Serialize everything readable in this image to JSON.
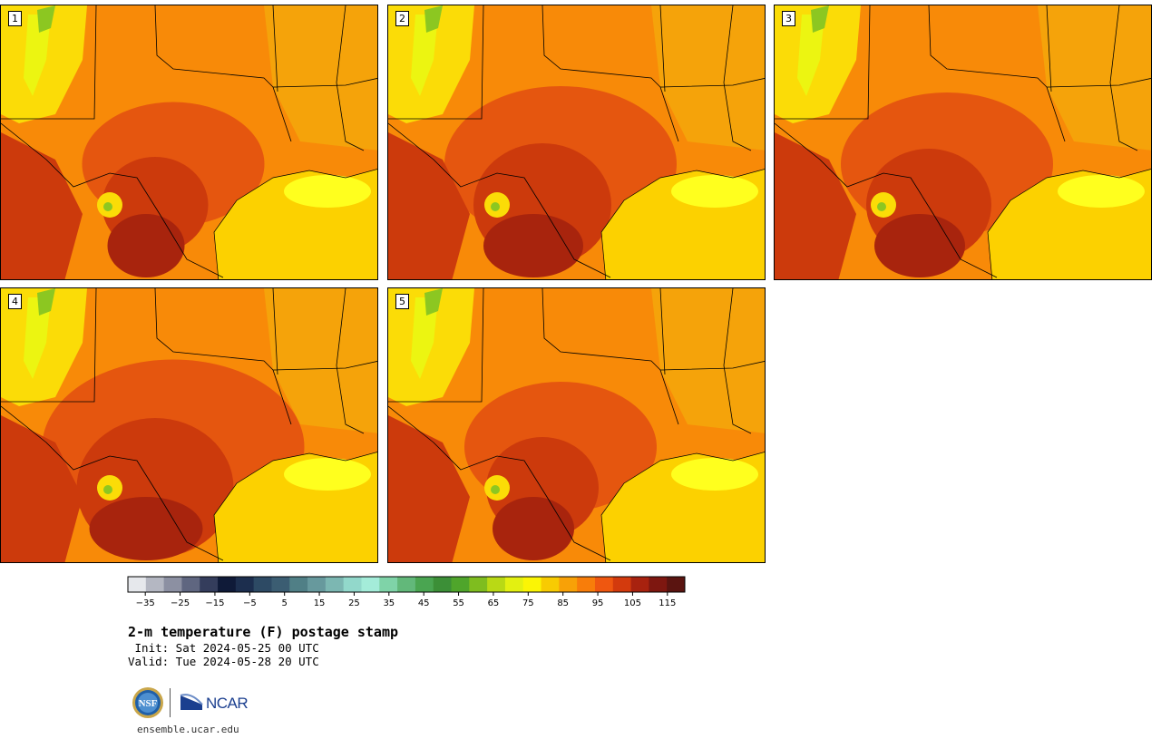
{
  "panels": [
    {
      "label": "1",
      "hot_spread": 0.55
    },
    {
      "label": "2",
      "hot_spread": 0.8
    },
    {
      "label": "3",
      "hot_spread": 0.7
    },
    {
      "label": "4",
      "hot_spread": 0.95
    },
    {
      "label": "5",
      "hot_spread": 0.6
    }
  ],
  "colorbar": {
    "ticks": [
      "−35",
      "−25",
      "−15",
      "−5",
      "5",
      "15",
      "25",
      "35",
      "45",
      "55",
      "65",
      "75",
      "85",
      "95",
      "105",
      "115"
    ],
    "colors": [
      "#e6e8ec",
      "#b4b7c2",
      "#8c90a2",
      "#5f6680",
      "#343d5c",
      "#0f1a38",
      "#1c2e4e",
      "#2d4a64",
      "#3b5d72",
      "#507f86",
      "#67999d",
      "#7cb7b2",
      "#92d8cb",
      "#a4ecd9",
      "#7fd3a8",
      "#62b87a",
      "#4aa551",
      "#3c8f37",
      "#4fa52b",
      "#7fbd1f",
      "#b9d915",
      "#e3f011",
      "#fbf505",
      "#f8cb02",
      "#f8a107",
      "#f87d0a",
      "#ef5710",
      "#d33a0d",
      "#a8220f",
      "#7e1710",
      "#5a1410"
    ]
  },
  "title": "2-m temperature (F) postage stamp",
  "init": " Init: Sat 2024-05-25 00 UTC",
  "valid": "Valid: Tue 2024-05-28 20 UTC",
  "logos": {
    "nsf": "NSF",
    "ncar": "NCAR"
  },
  "website": "ensemble.ucar.edu",
  "map_colors": {
    "base": "#f88a08",
    "warm": "#f5a30a",
    "hot": "#e5560f",
    "hotter": "#cc3a0c",
    "hottest": "#a8240d",
    "gulf": "#fcd100",
    "gulf_cool": "#ffff1e",
    "highland": "#fbdc07",
    "cool": "#ecf511",
    "green": "#8cc721"
  }
}
